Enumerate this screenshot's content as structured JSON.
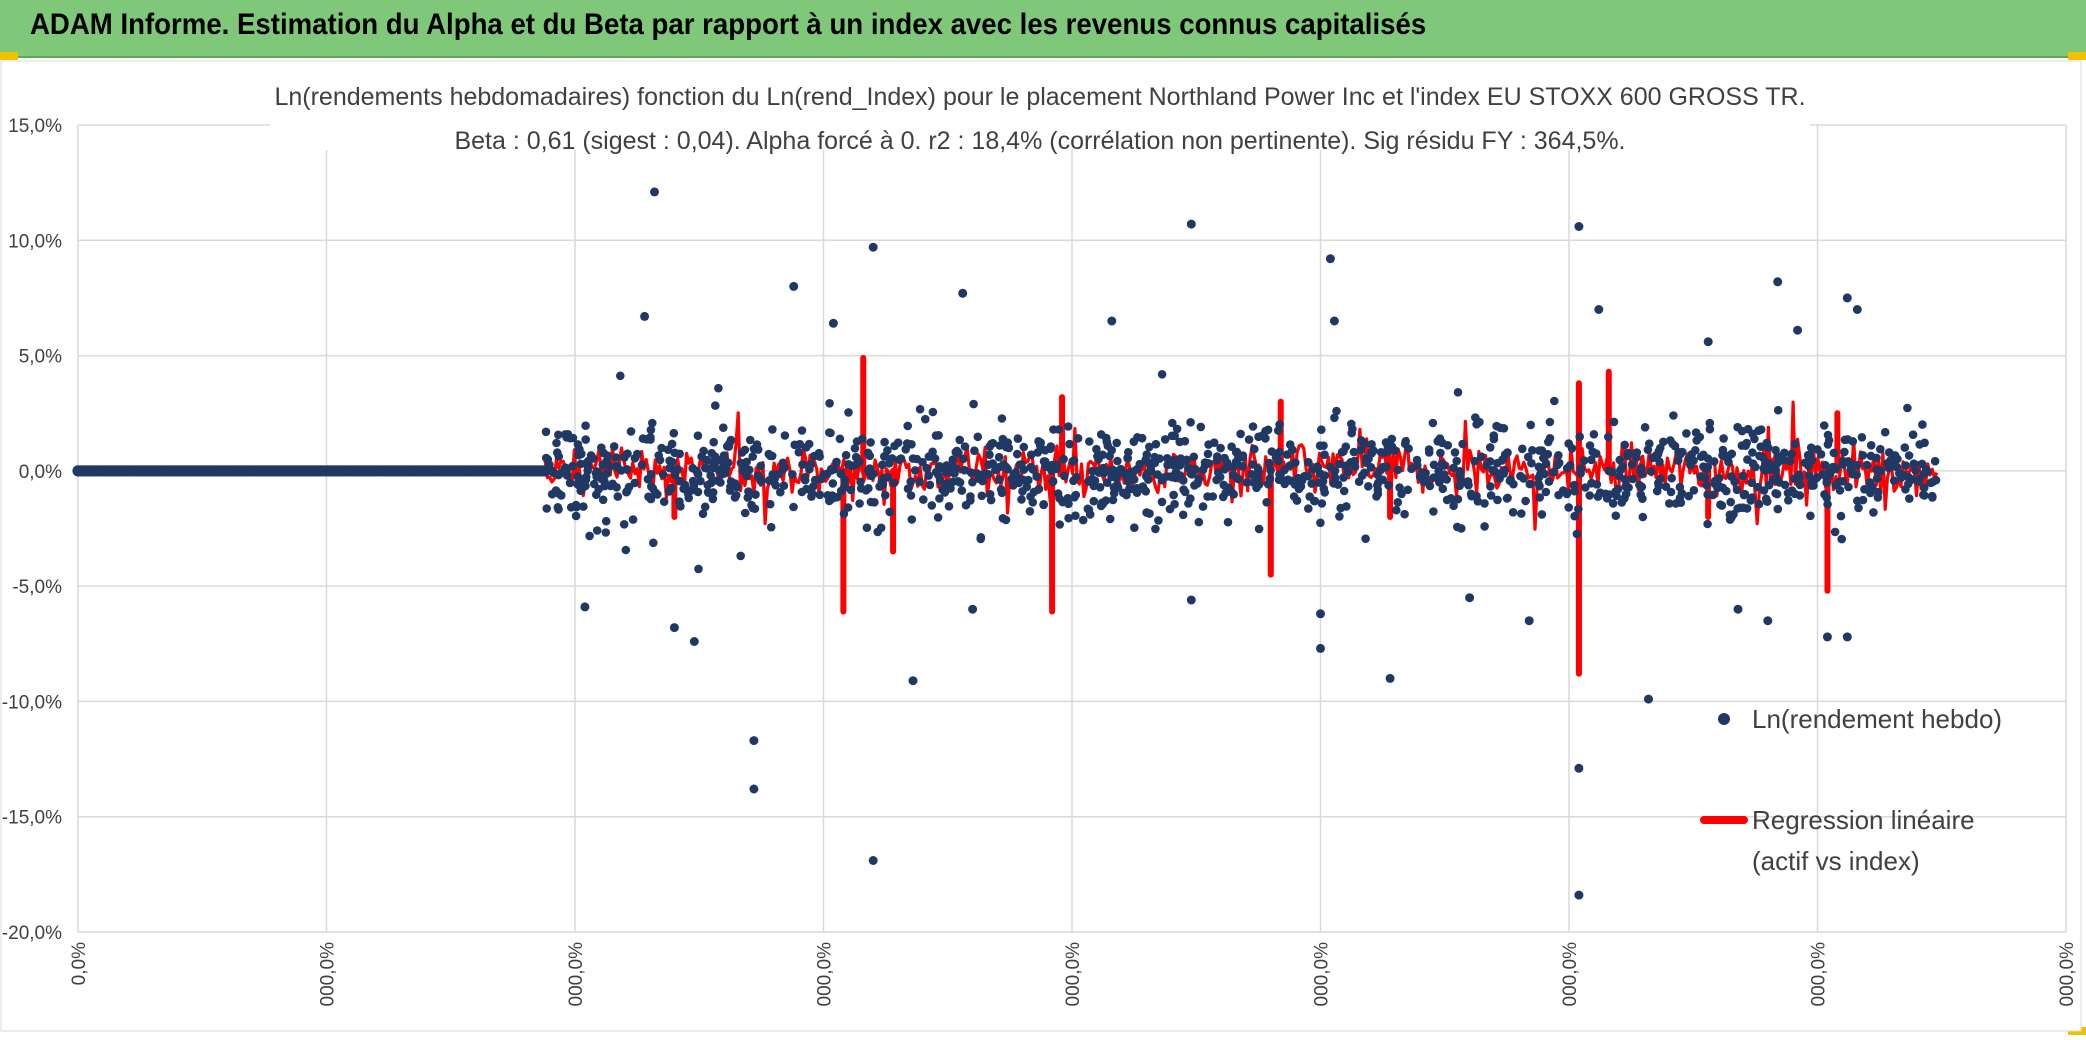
{
  "header": {
    "title": "ADAM Informe. Estimation du Alpha et du Beta par rapport à un index avec les revenus connus capitalisés"
  },
  "colors": {
    "banner": "#7fc87a",
    "scatter": "#203864",
    "regression": "#ff0000",
    "grid": "#d9d9d9",
    "text": "#404040"
  },
  "chart_data": {
    "type": "scatter",
    "title": "Ln(rendements hebdomadaires) fonction du Ln(rend_Index) pour le placement Northland Power Inc et l'index EU STOXX 600 GROSS TR.",
    "subtitle": "Beta : 0,61 (sigest : 0,04). Alpha forcé à 0. r2 : 18,4% (corrélation non pertinente). Sig résidu FY : 364,5%.",
    "xlabel": "",
    "ylabel": "",
    "ylim": [
      -0.2,
      0.15
    ],
    "y_ticks": [
      0.15,
      0.1,
      0.05,
      0.0,
      -0.05,
      -0.1,
      -0.15,
      -0.2
    ],
    "y_tick_labels": [
      "15,0%",
      "10,0%",
      "5,0%",
      "0,0%",
      "-5,0%",
      "-10,0%",
      "-15,0%",
      "-20,0%"
    ],
    "x_tick_labels": [
      "0,0%",
      "000,0%",
      "000,0%",
      "000,0%",
      "000,0%",
      "000,0%",
      "000,0%",
      "000,0%",
      "000,0%"
    ],
    "grid": true,
    "legend_position": "right",
    "series": [
      {
        "name": "Ln(rendement hebdo)",
        "kind": "scatter",
        "notes_zero_segment_end": 0.235,
        "outliers": [
          [
            0.29,
            0.121
          ],
          [
            0.4,
            0.097
          ],
          [
            0.56,
            0.107
          ],
          [
            0.755,
            0.106
          ],
          [
            0.63,
            0.092
          ],
          [
            0.855,
            0.082
          ],
          [
            0.89,
            0.075
          ],
          [
            0.895,
            0.07
          ],
          [
            0.765,
            0.07
          ],
          [
            0.285,
            0.067
          ],
          [
            0.38,
            0.064
          ],
          [
            0.632,
            0.065
          ],
          [
            0.445,
            0.077
          ],
          [
            0.36,
            0.08
          ],
          [
            0.865,
            0.061
          ],
          [
            0.82,
            0.056
          ],
          [
            0.52,
            0.065
          ],
          [
            0.255,
            -0.059
          ],
          [
            0.31,
            -0.074
          ],
          [
            0.34,
            -0.117
          ],
          [
            0.34,
            -0.138
          ],
          [
            0.42,
            -0.091
          ],
          [
            0.4,
            -0.169
          ],
          [
            0.625,
            -0.077
          ],
          [
            0.625,
            -0.062
          ],
          [
            0.66,
            -0.09
          ],
          [
            0.79,
            -0.099
          ],
          [
            0.755,
            -0.129
          ],
          [
            0.755,
            -0.184
          ],
          [
            0.3,
            -0.068
          ],
          [
            0.45,
            -0.06
          ],
          [
            0.85,
            -0.065
          ],
          [
            0.88,
            -0.072
          ],
          [
            0.89,
            -0.072
          ],
          [
            0.7,
            -0.055
          ],
          [
            0.56,
            -0.056
          ],
          [
            0.73,
            -0.065
          ],
          [
            0.835,
            -0.06
          ]
        ]
      },
      {
        "name": "Regression linéaire",
        "name_line2": "(actif vs index)",
        "kind": "line",
        "spikes": [
          [
            0.395,
            0.049
          ],
          [
            0.385,
            -0.061
          ],
          [
            0.41,
            -0.035
          ],
          [
            0.49,
            -0.061
          ],
          [
            0.495,
            0.032
          ],
          [
            0.6,
            -0.045
          ],
          [
            0.605,
            0.03
          ],
          [
            0.755,
            -0.088
          ],
          [
            0.755,
            0.038
          ],
          [
            0.77,
            0.043
          ],
          [
            0.88,
            -0.052
          ],
          [
            0.885,
            0.025
          ],
          [
            0.66,
            -0.02
          ],
          [
            0.3,
            -0.02
          ],
          [
            0.82,
            -0.02
          ]
        ]
      }
    ]
  }
}
